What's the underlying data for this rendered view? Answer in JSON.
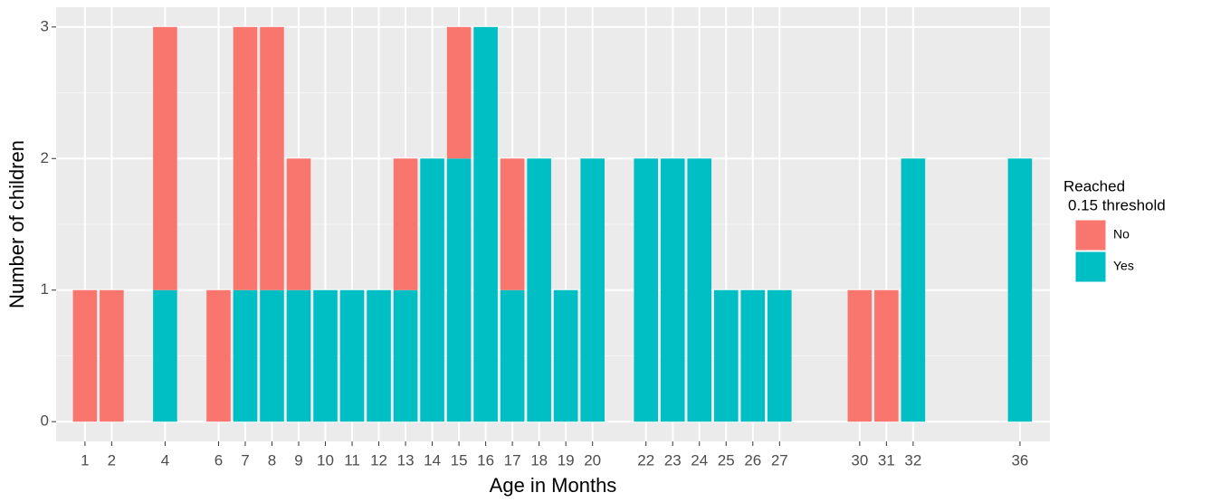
{
  "chart_data": {
    "type": "bar",
    "stacked": true,
    "x_label": "Age in Months",
    "y_label": "Number of children",
    "legend_title": [
      "Reached",
      "0.15 threshold"
    ],
    "x": [
      1,
      2,
      4,
      6,
      7,
      8,
      9,
      10,
      11,
      12,
      13,
      14,
      15,
      16,
      17,
      18,
      19,
      20,
      22,
      23,
      24,
      25,
      26,
      27,
      30,
      31,
      32,
      36
    ],
    "series": [
      {
        "name": "No",
        "color": "#f8766d",
        "values": [
          1,
          1,
          2,
          1,
          2,
          2,
          1,
          0,
          0,
          0,
          1,
          0,
          1,
          0,
          1,
          0,
          0,
          0,
          0,
          0,
          0,
          0,
          0,
          0,
          1,
          1,
          0,
          0
        ]
      },
      {
        "name": "Yes",
        "color": "#00bfc4",
        "values": [
          0,
          0,
          1,
          0,
          1,
          1,
          1,
          1,
          1,
          1,
          1,
          2,
          2,
          3,
          1,
          2,
          1,
          2,
          2,
          2,
          2,
          1,
          1,
          1,
          0,
          0,
          2,
          2
        ]
      }
    ],
    "xlim": [
      -0.08,
      37.12
    ],
    "xticks": [
      1,
      2,
      4,
      6,
      7,
      8,
      9,
      10,
      11,
      12,
      13,
      14,
      15,
      16,
      17,
      18,
      19,
      20,
      22,
      23,
      24,
      25,
      26,
      27,
      30,
      31,
      32,
      36
    ],
    "ylim": [
      -0.15,
      3.15
    ],
    "yticks": [
      0,
      1,
      2,
      3
    ],
    "grid": true,
    "legend_position": "right"
  }
}
